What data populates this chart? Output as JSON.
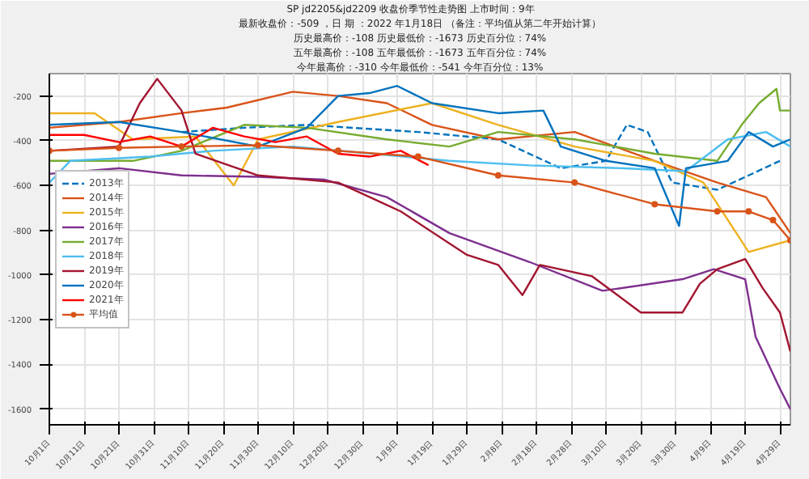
{
  "chart_data": {
    "type": "line",
    "title": "SP jd2205&jd2209  收盘价季节性走势图      上市时间：9年",
    "subtitle": "最新收盘价：-509 ，日 期 ：2022 年1月18日 （备注：平均值从第二年开始计算）",
    "annotations": [
      "历史最高价：-108 历史最低价：-1673 历史百分位：74%",
      "五年最高价：-108 五年最低价：-1673 五年百分位：74%",
      "今年最高价：-310 今年最低价：-541 今年百分位：13%"
    ],
    "xlim": [
      "2021-10-01",
      "2022-05-02"
    ],
    "ylim": [
      -1670,
      -100
    ],
    "xticks": [
      {
        "value": "2021-10-01",
        "label": "10月1日"
      },
      {
        "value": "2021-10-11",
        "label": "10月11日"
      },
      {
        "value": "2021-10-21",
        "label": "10月21日"
      },
      {
        "value": "2021-10-31",
        "label": "10月31日"
      },
      {
        "value": "2021-11-10",
        "label": "11月10日"
      },
      {
        "value": "2021-11-20",
        "label": "11月20日"
      },
      {
        "value": "2021-11-30",
        "label": "11月30日"
      },
      {
        "value": "2021-12-10",
        "label": "12月10日"
      },
      {
        "value": "2021-12-20",
        "label": "12月20日"
      },
      {
        "value": "2021-12-30",
        "label": "12月30日"
      },
      {
        "value": "2022-01-09",
        "label": "1月9日"
      },
      {
        "value": "2022-01-19",
        "label": "1月19日"
      },
      {
        "value": "2022-01-29",
        "label": "1月29日"
      },
      {
        "value": "2022-02-08",
        "label": "2月8日"
      },
      {
        "value": "2022-02-18",
        "label": "2月18日"
      },
      {
        "value": "2022-02-28",
        "label": "2月28日"
      },
      {
        "value": "2022-03-10",
        "label": "3月10日"
      },
      {
        "value": "2022-03-20",
        "label": "3月20日"
      },
      {
        "value": "2022-03-30",
        "label": "3月30日"
      },
      {
        "value": "2022-04-09",
        "label": "4月9日"
      },
      {
        "value": "2022-04-19",
        "label": "4月19日"
      },
      {
        "value": "2022-04-29",
        "label": "4月29日"
      }
    ],
    "yticks": [
      -1600,
      -1400,
      -1200,
      -1000,
      -800,
      -600,
      -400,
      -200
    ],
    "grid": true,
    "legend": "left",
    "marker": "none",
    "line_style": "solid",
    "series": [
      {
        "name": "2013年",
        "color": "#0072bd",
        "line_style": "dashed",
        "x": [
          "2021-11-08",
          "2021-11-26",
          "2021-12-14",
          "2022-01-15",
          "2022-02-07",
          "2022-02-25",
          "2022-03-10",
          "2022-03-16",
          "2022-03-22",
          "2022-03-29",
          "2022-04-11",
          "2022-04-20",
          "2022-04-29"
        ],
        "values": [
          -361,
          -342,
          -329,
          -361,
          -394,
          -523,
          -490,
          -329,
          -361,
          -587,
          -619,
          -555,
          -490
        ]
      },
      {
        "name": "2014年",
        "color": "#d95319",
        "x": [
          "2021-10-01",
          "2021-10-21",
          "2021-11-08",
          "2021-11-21",
          "2021-12-10",
          "2021-12-23",
          "2022-01-06",
          "2022-01-19",
          "2022-02-07",
          "2022-03-01",
          "2022-03-24",
          "2022-04-11",
          "2022-04-25",
          "2022-05-02"
        ],
        "values": [
          -342,
          -316,
          -277,
          -252,
          -181,
          -200,
          -232,
          -329,
          -394,
          -361,
          -490,
          -587,
          -652,
          -813
        ]
      },
      {
        "name": "2015年",
        "color": "#edb120",
        "x": [
          "2021-10-01",
          "2021-10-14",
          "2021-10-25",
          "2021-11-12",
          "2021-11-23",
          "2021-11-30",
          "2021-12-23",
          "2022-01-19",
          "2022-02-07",
          "2022-03-01",
          "2022-03-24",
          "2022-04-07",
          "2022-04-20",
          "2022-05-02"
        ],
        "values": [
          -277,
          -277,
          -394,
          -381,
          -600,
          -394,
          -316,
          -232,
          -329,
          -426,
          -490,
          -587,
          -897,
          -845
        ]
      },
      {
        "name": "2016年",
        "color": "#7e2f8e",
        "x": [
          "2021-10-01",
          "2021-10-21",
          "2021-11-08",
          "2021-11-30",
          "2021-12-19",
          "2022-01-06",
          "2022-01-24",
          "2022-02-16",
          "2022-03-09",
          "2022-04-01",
          "2022-04-10",
          "2022-04-19",
          "2022-04-22",
          "2022-04-29",
          "2022-05-02"
        ],
        "values": [
          -548,
          -523,
          -555,
          -561,
          -574,
          -652,
          -813,
          -942,
          -1071,
          -1019,
          -974,
          -1019,
          -1277,
          -1509,
          -1600
        ]
      },
      {
        "name": "2017年",
        "color": "#77ac30",
        "x": [
          "2021-10-01",
          "2021-10-25",
          "2021-11-08",
          "2021-11-26",
          "2021-12-14",
          "2022-01-06",
          "2022-01-24",
          "2022-02-07",
          "2022-03-01",
          "2022-03-24",
          "2022-04-11",
          "2022-04-18",
          "2022-04-23",
          "2022-04-28",
          "2022-04-29",
          "2022-05-02"
        ],
        "values": [
          -490,
          -490,
          -445,
          -329,
          -342,
          -394,
          -426,
          -361,
          -394,
          -458,
          -490,
          -329,
          -232,
          -168,
          -265,
          -265
        ]
      },
      {
        "name": "2018年",
        "color": "#4dbeee",
        "x": [
          "2021-10-01",
          "2021-10-07",
          "2021-10-30",
          "2021-11-17",
          "2021-12-10",
          "2022-01-02",
          "2022-01-24",
          "2022-02-16",
          "2022-03-15",
          "2022-04-02",
          "2022-04-14",
          "2022-04-25",
          "2022-05-02"
        ],
        "values": [
          -587,
          -490,
          -471,
          -445,
          -426,
          -458,
          -490,
          -510,
          -523,
          -536,
          -394,
          -361,
          -426
        ]
      },
      {
        "name": "2019年",
        "color": "#a2142f",
        "x": [
          "2021-10-01",
          "2021-10-21",
          "2021-10-27",
          "2021-11-01",
          "2021-11-08",
          "2021-11-12",
          "2021-11-30",
          "2021-12-23",
          "2022-01-10",
          "2022-01-29",
          "2022-02-07",
          "2022-02-14",
          "2022-02-19",
          "2022-03-06",
          "2022-03-20",
          "2022-04-01",
          "2022-04-06",
          "2022-04-11",
          "2022-04-19",
          "2022-04-24",
          "2022-04-29",
          "2022-05-02"
        ],
        "values": [
          -445,
          -426,
          -232,
          -123,
          -265,
          -458,
          -555,
          -587,
          -716,
          -910,
          -955,
          -1090,
          -955,
          -1006,
          -1168,
          -1168,
          -1039,
          -974,
          -929,
          -1058,
          -1168,
          -1342
        ]
      },
      {
        "name": "2020年",
        "color": "#0072bd",
        "x": [
          "2021-10-01",
          "2021-10-21",
          "2021-11-08",
          "2021-11-30",
          "2021-12-14",
          "2021-12-23",
          "2022-01-01",
          "2022-01-09",
          "2022-01-19",
          "2022-02-07",
          "2022-02-20",
          "2022-02-25",
          "2022-03-10",
          "2022-03-24",
          "2022-03-31",
          "2022-04-02",
          "2022-04-14",
          "2022-04-20",
          "2022-04-27",
          "2022-05-02"
        ],
        "values": [
          -329,
          -316,
          -361,
          -426,
          -342,
          -200,
          -187,
          -155,
          -232,
          -277,
          -265,
          -426,
          -490,
          -523,
          -781,
          -523,
          -490,
          -361,
          -426,
          -394
        ]
      },
      {
        "name": "2021年",
        "color": "#ff0000",
        "x": [
          "2021-10-01",
          "2021-10-11",
          "2021-10-21",
          "2021-10-30",
          "2021-11-08",
          "2021-11-17",
          "2021-11-26",
          "2021-12-05",
          "2021-12-14",
          "2021-12-23",
          "2022-01-01",
          "2022-01-10",
          "2022-01-18"
        ],
        "values": [
          -374,
          -374,
          -406,
          -381,
          -426,
          -342,
          -381,
          -406,
          -381,
          -458,
          -471,
          -445,
          -509
        ]
      },
      {
        "name": "平均值",
        "color": "#d95319",
        "marker": "circle",
        "x": [
          "2021-10-01",
          "2021-10-21",
          "2021-11-08",
          "2021-11-30",
          "2021-12-23",
          "2022-01-15",
          "2022-02-07",
          "2022-03-01",
          "2022-03-24",
          "2022-04-11",
          "2022-04-20",
          "2022-04-27",
          "2022-05-02"
        ],
        "values": [
          -445,
          -432,
          -426,
          -420,
          -445,
          -471,
          -555,
          -587,
          -684,
          -716,
          -716,
          -755,
          -845
        ]
      }
    ]
  }
}
